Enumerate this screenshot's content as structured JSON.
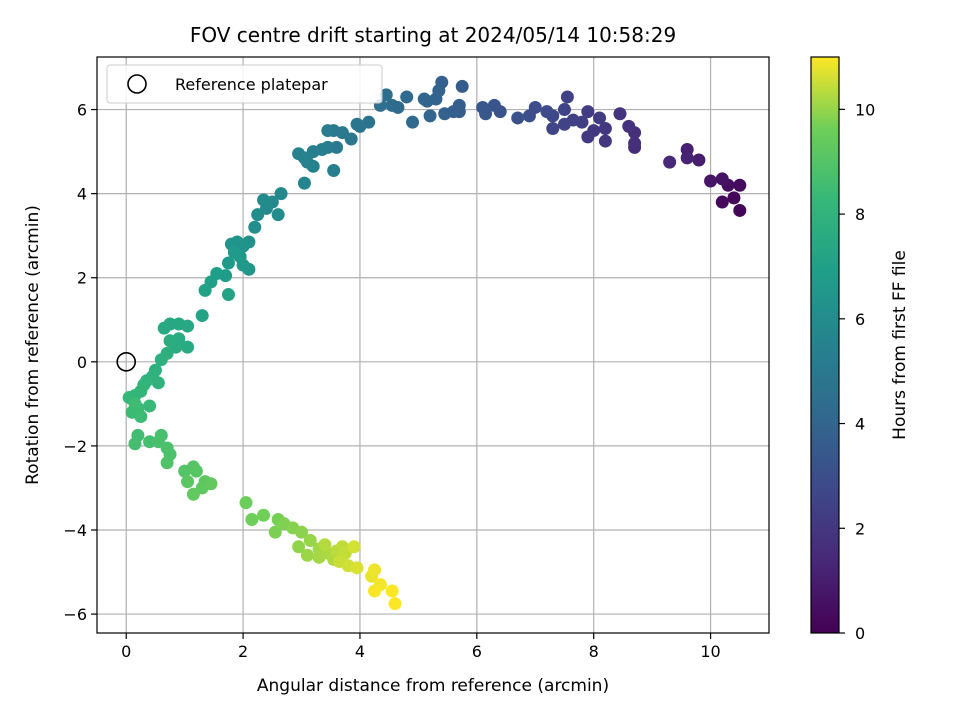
{
  "chart_data": {
    "type": "scatter",
    "title": "FOV centre drift starting at 2024/05/14 10:58:29",
    "xlabel": "Angular distance from reference (arcmin)",
    "ylabel": "Rotation from reference (arcmin)",
    "xlim": [
      -0.5,
      11.0
    ],
    "ylim": [
      -6.45,
      7.25
    ],
    "xticks": [
      0,
      2,
      4,
      6,
      8,
      10
    ],
    "yticks": [
      -6,
      -4,
      -2,
      0,
      2,
      4,
      6
    ],
    "grid": true,
    "legend": {
      "placement": "upper-left",
      "entries": [
        "Reference platepar"
      ]
    },
    "reference_point": {
      "x": 0,
      "y": 0
    },
    "colorbar": {
      "label": "Hours from first FF file",
      "colormap": "viridis",
      "range": [
        0,
        11
      ],
      "ticks": [
        0,
        2,
        4,
        6,
        8,
        10
      ]
    },
    "points": [
      [
        10.5,
        3.6,
        0.1
      ],
      [
        10.4,
        3.9,
        0.2
      ],
      [
        10.2,
        3.8,
        0.3
      ],
      [
        10.5,
        4.2,
        0.4
      ],
      [
        10.3,
        4.2,
        0.5
      ],
      [
        10.2,
        4.35,
        0.6
      ],
      [
        10.0,
        4.3,
        0.7
      ],
      [
        9.8,
        4.8,
        1.0
      ],
      [
        9.6,
        5.05,
        1.1
      ],
      [
        9.6,
        4.85,
        1.2
      ],
      [
        9.3,
        4.75,
        1.4
      ],
      [
        8.7,
        5.1,
        1.6
      ],
      [
        8.7,
        5.2,
        1.65
      ],
      [
        8.7,
        5.45,
        1.7
      ],
      [
        8.6,
        5.6,
        1.75
      ],
      [
        8.45,
        5.9,
        1.85
      ],
      [
        8.2,
        5.25,
        1.95
      ],
      [
        8.2,
        5.55,
        2.0
      ],
      [
        8.0,
        5.5,
        2.05
      ],
      [
        7.9,
        5.35,
        2.1
      ],
      [
        8.1,
        5.8,
        2.15
      ],
      [
        7.9,
        5.95,
        2.2
      ],
      [
        7.8,
        5.7,
        2.3
      ],
      [
        7.65,
        5.75,
        2.4
      ],
      [
        7.55,
        6.3,
        2.45
      ],
      [
        7.5,
        5.65,
        2.5
      ],
      [
        7.5,
        6.0,
        2.55
      ],
      [
        7.3,
        5.55,
        2.6
      ],
      [
        7.3,
        5.85,
        2.7
      ],
      [
        7.2,
        5.95,
        2.8
      ],
      [
        7.0,
        6.05,
        2.9
      ],
      [
        6.9,
        5.85,
        3.0
      ],
      [
        6.7,
        5.8,
        3.1
      ],
      [
        6.4,
        5.95,
        3.2
      ],
      [
        6.3,
        6.1,
        3.3
      ],
      [
        6.15,
        5.9,
        3.35
      ],
      [
        6.1,
        6.05,
        3.4
      ],
      [
        5.75,
        6.55,
        3.6
      ],
      [
        5.7,
        5.95,
        3.65
      ],
      [
        5.7,
        6.1,
        3.7
      ],
      [
        5.6,
        5.95,
        3.75
      ],
      [
        5.4,
        6.65,
        3.8
      ],
      [
        5.45,
        5.9,
        3.85
      ],
      [
        5.35,
        6.45,
        3.9
      ],
      [
        5.3,
        6.25,
        3.95
      ],
      [
        5.15,
        6.2,
        4.0
      ],
      [
        5.2,
        5.85,
        4.05
      ],
      [
        5.1,
        6.25,
        4.1
      ],
      [
        4.9,
        5.7,
        4.2
      ],
      [
        4.8,
        6.3,
        4.25
      ],
      [
        4.65,
        6.05,
        4.3
      ],
      [
        4.55,
        6.1,
        4.4
      ],
      [
        4.45,
        6.35,
        4.5
      ],
      [
        4.35,
        6.1,
        4.55
      ],
      [
        4.15,
        5.7,
        4.7
      ],
      [
        4.0,
        5.6,
        4.8
      ],
      [
        3.95,
        5.65,
        4.85
      ],
      [
        3.85,
        5.3,
        4.9
      ],
      [
        3.7,
        5.45,
        5.0
      ],
      [
        3.6,
        5.1,
        5.05
      ],
      [
        3.55,
        5.5,
        5.1
      ],
      [
        3.45,
        5.5,
        5.15
      ],
      [
        3.45,
        5.1,
        5.2
      ],
      [
        3.55,
        4.55,
        5.25
      ],
      [
        3.35,
        5.05,
        5.3
      ],
      [
        3.2,
        5.0,
        5.35
      ],
      [
        3.1,
        4.75,
        5.4
      ],
      [
        3.2,
        4.65,
        5.45
      ],
      [
        3.05,
        4.85,
        5.5
      ],
      [
        2.95,
        4.95,
        5.55
      ],
      [
        3.05,
        4.25,
        5.6
      ],
      [
        2.65,
        4.0,
        5.8
      ],
      [
        2.5,
        3.8,
        5.85
      ],
      [
        2.4,
        3.65,
        5.9
      ],
      [
        2.35,
        3.85,
        5.95
      ],
      [
        2.6,
        3.5,
        6.0
      ],
      [
        2.25,
        3.5,
        6.05
      ],
      [
        2.2,
        3.2,
        6.1
      ],
      [
        2.1,
        2.85,
        6.25
      ],
      [
        2.0,
        2.75,
        6.35
      ],
      [
        1.9,
        2.85,
        6.4
      ],
      [
        1.8,
        2.8,
        6.45
      ],
      [
        2.1,
        2.2,
        6.55
      ],
      [
        2.0,
        2.3,
        6.6
      ],
      [
        1.95,
        2.5,
        6.65
      ],
      [
        1.85,
        2.6,
        6.7
      ],
      [
        1.75,
        2.35,
        6.75
      ],
      [
        1.7,
        2.05,
        6.85
      ],
      [
        1.55,
        2.1,
        6.9
      ],
      [
        1.45,
        1.9,
        7.0
      ],
      [
        1.35,
        1.7,
        7.05
      ],
      [
        1.75,
        1.6,
        7.1
      ],
      [
        1.3,
        1.1,
        7.2
      ],
      [
        1.05,
        0.85,
        7.35
      ],
      [
        0.9,
        0.9,
        7.4
      ],
      [
        0.75,
        0.9,
        7.45
      ],
      [
        0.65,
        0.8,
        7.5
      ],
      [
        1.05,
        0.35,
        7.55
      ],
      [
        0.9,
        0.55,
        7.6
      ],
      [
        0.85,
        0.35,
        7.65
      ],
      [
        0.75,
        0.5,
        7.7
      ],
      [
        0.7,
        0.2,
        7.75
      ],
      [
        0.6,
        0.05,
        7.85
      ],
      [
        0.5,
        -0.2,
        7.9
      ],
      [
        0.45,
        -0.35,
        7.95
      ],
      [
        0.55,
        -0.5,
        8.0
      ],
      [
        0.35,
        -0.45,
        8.05
      ],
      [
        0.3,
        -0.55,
        8.1
      ],
      [
        0.25,
        -0.7,
        8.15
      ],
      [
        0.15,
        -0.8,
        8.2
      ],
      [
        0.05,
        -0.85,
        8.25
      ],
      [
        0.4,
        -1.05,
        8.3
      ],
      [
        0.2,
        -1.1,
        8.35
      ],
      [
        0.1,
        -1.2,
        8.4
      ],
      [
        0.25,
        -1.3,
        8.45
      ],
      [
        0.15,
        -1.0,
        8.5
      ],
      [
        0.2,
        -1.75,
        8.55
      ],
      [
        0.15,
        -1.95,
        8.6
      ],
      [
        0.4,
        -1.9,
        8.65
      ],
      [
        0.6,
        -1.75,
        8.7
      ],
      [
        0.55,
        -1.9,
        8.75
      ],
      [
        0.7,
        -2.05,
        8.8
      ],
      [
        0.75,
        -2.2,
        8.85
      ],
      [
        0.7,
        -2.4,
        8.9
      ],
      [
        1.0,
        -2.6,
        9.0
      ],
      [
        1.15,
        -2.5,
        9.05
      ],
      [
        1.2,
        -2.6,
        9.1
      ],
      [
        1.05,
        -2.85,
        9.15
      ],
      [
        1.35,
        -2.85,
        9.2
      ],
      [
        1.3,
        -3.0,
        9.25
      ],
      [
        1.15,
        -3.15,
        9.3
      ],
      [
        1.45,
        -2.9,
        9.35
      ],
      [
        2.05,
        -3.35,
        9.55
      ],
      [
        2.15,
        -3.75,
        9.6
      ],
      [
        2.35,
        -3.65,
        9.65
      ],
      [
        2.6,
        -3.75,
        9.7
      ],
      [
        2.55,
        -4.05,
        9.75
      ],
      [
        2.7,
        -3.85,
        9.8
      ],
      [
        2.85,
        -3.95,
        9.85
      ],
      [
        3.0,
        -4.05,
        9.9
      ],
      [
        2.95,
        -4.4,
        9.95
      ],
      [
        3.15,
        -4.25,
        10.0
      ],
      [
        3.1,
        -4.6,
        10.05
      ],
      [
        3.3,
        -4.45,
        10.1
      ],
      [
        3.3,
        -4.65,
        10.15
      ],
      [
        3.45,
        -4.55,
        10.2
      ],
      [
        3.55,
        -4.7,
        10.25
      ],
      [
        3.4,
        -4.35,
        10.3
      ],
      [
        3.6,
        -4.5,
        10.35
      ],
      [
        3.7,
        -4.4,
        10.4
      ],
      [
        3.75,
        -4.55,
        10.45
      ],
      [
        3.65,
        -4.75,
        10.5
      ],
      [
        3.8,
        -4.85,
        10.55
      ],
      [
        3.9,
        -4.4,
        10.6
      ],
      [
        3.95,
        -4.9,
        10.65
      ],
      [
        4.2,
        -5.1,
        10.8
      ],
      [
        4.25,
        -4.95,
        10.85
      ],
      [
        4.35,
        -5.3,
        10.9
      ],
      [
        4.25,
        -5.45,
        10.95
      ],
      [
        4.55,
        -5.45,
        11.0
      ],
      [
        4.6,
        -5.75,
        11.05
      ]
    ]
  }
}
